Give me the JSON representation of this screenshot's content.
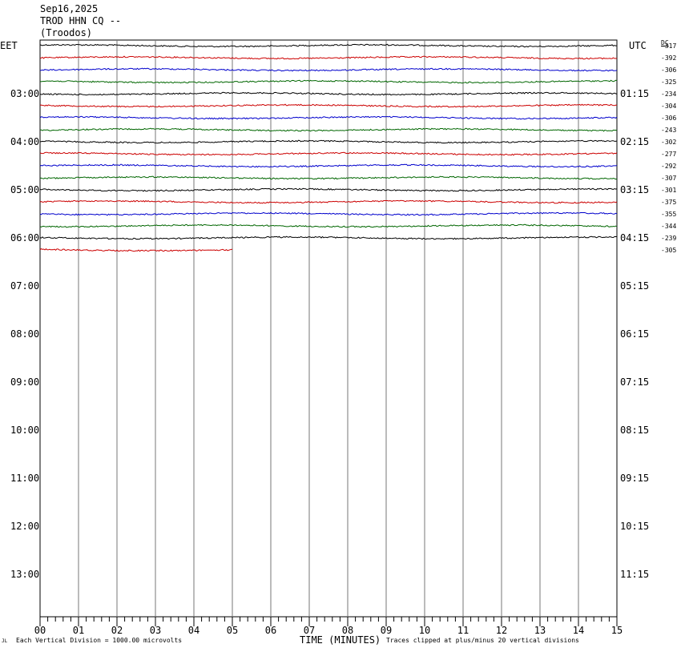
{
  "header": {
    "date": "Sep16,2025",
    "station": "TROD HHN CQ --",
    "location": "(Troodos)"
  },
  "left_tz": "EET",
  "right_tz": "UTC",
  "dc_label": "DC",
  "chart_data": {
    "type": "line",
    "title": "Sep16,2025 TROD HHN CQ -- (Troodos)",
    "xlabel": "TIME (MINUTES)",
    "x_ticks": [
      "00",
      "01",
      "02",
      "03",
      "04",
      "05",
      "06",
      "07",
      "08",
      "09",
      "10",
      "11",
      "12",
      "13",
      "14",
      "15"
    ],
    "xlim": [
      0,
      15
    ],
    "left_time_labels": [
      "03:00",
      "04:00",
      "05:00",
      "06:00",
      "07:00",
      "08:00",
      "09:00",
      "10:00",
      "11:00",
      "12:00",
      "13:00"
    ],
    "right_time_labels": [
      "01:15",
      "02:15",
      "03:15",
      "04:15",
      "05:15",
      "06:15",
      "07:15",
      "08:15",
      "09:15",
      "10:15",
      "11:15"
    ],
    "trace_colors": [
      "#000000",
      "#cc0000",
      "#0000cc",
      "#006600"
    ],
    "dc_offsets": [
      "-317",
      "-392",
      "-306",
      "-325",
      "-234",
      "-304",
      "-306",
      "-243",
      "-302",
      "-277",
      "-292",
      "-307",
      "-301",
      "-375",
      "-355",
      "-344",
      "-239",
      "-305"
    ],
    "trace_lengths_minutes": [
      15,
      15,
      15,
      15,
      15,
      15,
      15,
      15,
      15,
      15,
      15,
      15,
      15,
      15,
      15,
      15,
      15,
      5
    ],
    "grid": true
  },
  "footer": {
    "left_mark": "JL",
    "scale_note": "Each Vertical Division = 1000.00 microvolts",
    "clip_note": "Traces clipped at plus/minus 20 vertical divisions"
  }
}
